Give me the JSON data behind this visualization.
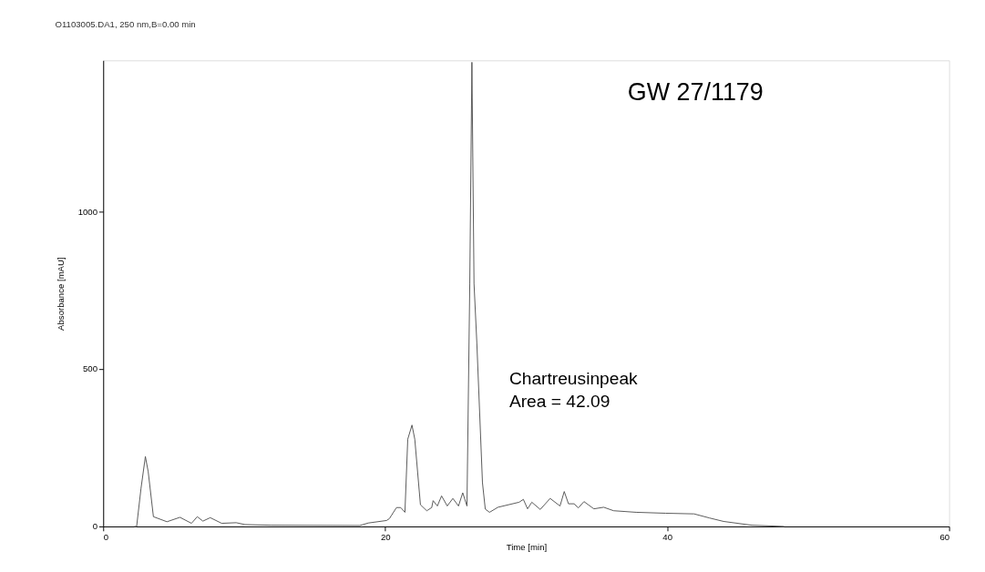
{
  "chart_data": {
    "type": "line",
    "title": "O1103005.DA1, 250 nm,B=0.00 min",
    "xlabel": "Time [min]",
    "ylabel": "Absorbance [mAU]",
    "annotations": [
      "GW 27/1179",
      "Chartreusinpeak\nArea = 42.09"
    ],
    "xlim": [
      0,
      60
    ],
    "xticks": [
      0,
      20,
      40,
      60
    ],
    "ylim": [
      0,
      1480
    ],
    "yticks": [
      0,
      500,
      1000
    ],
    "grid": false,
    "marker": "none",
    "line_style": "solid",
    "series": [
      {
        "color": "#555555",
        "x": [
          2.2,
          2.37,
          2.68,
          2.99,
          3.19,
          3.56,
          4.52,
          5.44,
          6.26,
          6.67,
          7.07,
          7.59,
          8.4,
          9.43,
          10.06,
          11.88,
          18.2,
          18.8,
          20.1,
          20.3,
          20.8,
          21.1,
          21.4,
          21.6,
          21.9,
          22.1,
          22.5,
          22.95,
          23.3,
          23.4,
          23.7,
          24.0,
          24.4,
          24.8,
          25.2,
          25.5,
          25.8,
          26.0,
          26.15,
          26.3,
          26.5,
          26.9,
          27.1,
          27.4,
          28.0,
          29.5,
          29.8,
          30.1,
          30.4,
          31.0,
          31.7,
          32.4,
          32.7,
          33.0,
          33.4,
          33.7,
          34.1,
          34.8,
          35.5,
          36.2,
          37.8,
          39.9,
          41.9,
          43.0,
          44.0,
          46.0,
          48.3
        ],
        "values": [
          0,
          0,
          121,
          222,
          174,
          31,
          15,
          29,
          10,
          31,
          17,
          28,
          10,
          12,
          6,
          4,
          3,
          11,
          19,
          25,
          60,
          60,
          45,
          277,
          322,
          277,
          69,
          50,
          60,
          82,
          65,
          97,
          65,
          89,
          65,
          107,
          65,
          772,
          1474,
          772,
          584,
          139,
          55,
          45,
          61,
          77,
          86,
          56,
          77,
          54,
          89,
          65,
          111,
          72,
          72,
          59,
          79,
          56,
          61,
          50,
          45,
          42,
          40,
          27,
          16,
          4,
          0
        ]
      }
    ]
  }
}
